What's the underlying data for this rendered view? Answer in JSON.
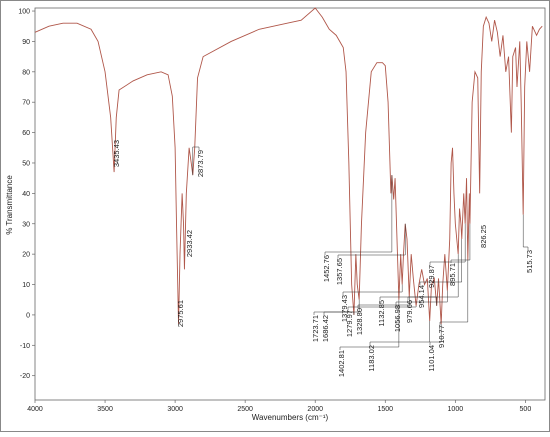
{
  "chart_data": {
    "type": "line",
    "x_label": "Wavenumbers (cm⁻¹)",
    "y_label": "% Transmittance",
    "xlim": [
      4000,
      360
    ],
    "ylim": [
      -28,
      101
    ],
    "xticks": [
      4000,
      3500,
      3000,
      2500,
      2000,
      1500,
      1000,
      500
    ],
    "yticks": [
      100,
      90,
      80,
      70,
      60,
      50,
      40,
      30,
      20,
      10,
      0,
      -10,
      -20
    ],
    "grid": false,
    "series": [
      {
        "color": "#b0574a",
        "x": [
          4000,
          3900,
          3800,
          3700,
          3600,
          3550,
          3500,
          3460,
          3435.43,
          3420,
          3400,
          3300,
          3200,
          3100,
          3050,
          3020,
          3000,
          2990,
          2975.61,
          2965,
          2950,
          2940,
          2933.42,
          2920,
          2900,
          2885,
          2873.79,
          2860,
          2840,
          2800,
          2600,
          2400,
          2200,
          2100,
          2000,
          1950,
          1900,
          1850,
          1800,
          1780,
          1760,
          1740,
          1723.71,
          1710,
          1700,
          1686.42,
          1670,
          1640,
          1600,
          1560,
          1520,
          1500,
          1480,
          1460,
          1452.76,
          1440,
          1430,
          1402.81,
          1390,
          1379.43,
          1370,
          1357.65,
          1345,
          1328.8,
          1315,
          1300,
          1279.97,
          1260,
          1240,
          1220,
          1200,
          1183.02,
          1170,
          1150,
          1132.85,
          1120,
          1101.04,
          1090,
          1075,
          1056.98,
          1040,
          1030,
          1020,
          1010,
          1000,
          979.66,
          970,
          960,
          954.14,
          940,
          929.87,
          920,
          910.77,
          900,
          895.71,
          880,
          860,
          840,
          826.25,
          815,
          800,
          780,
          760,
          740,
          720,
          700,
          680,
          660,
          640,
          620,
          600,
          590,
          570,
          560,
          540,
          530,
          515.73,
          505,
          490,
          470,
          450,
          420,
          400,
          380
        ],
        "values": [
          93,
          95,
          96,
          96,
          94,
          90,
          80,
          65,
          47,
          65,
          74,
          77,
          79,
          80,
          79,
          72,
          55,
          30,
          -3,
          20,
          40,
          30,
          15,
          40,
          55,
          50,
          46,
          55,
          78,
          85,
          90,
          94,
          96,
          97,
          101,
          98,
          94,
          92,
          88,
          80,
          50,
          10,
          0,
          20,
          10,
          5,
          30,
          60,
          80,
          83,
          83,
          82,
          70,
          40,
          46,
          38,
          45,
          5,
          20,
          10,
          20,
          30,
          25,
          6,
          20,
          12,
          3,
          10,
          15,
          10,
          12,
          -2,
          10,
          12,
          3,
          12,
          -3,
          10,
          20,
          8,
          25,
          50,
          55,
          40,
          30,
          20,
          35,
          30,
          25,
          40,
          30,
          45,
          18,
          40,
          30,
          70,
          80,
          78,
          40,
          80,
          95,
          98,
          96,
          90,
          97,
          93,
          85,
          92,
          80,
          85,
          60,
          85,
          88,
          75,
          90,
          70,
          33,
          75,
          90,
          80,
          95,
          92,
          94,
          95
        ]
      }
    ],
    "annotations": [
      {
        "label": "3435.43",
        "x": 3435.43,
        "y": 47
      },
      {
        "label": "2975.61",
        "x": 2975.61,
        "y": -3
      },
      {
        "label": "2933.42",
        "x": 2933.42,
        "y": 15
      },
      {
        "label": "2873.79",
        "x": 2873.79,
        "y": 46
      },
      {
        "label": "1452.76",
        "x": 1452.76,
        "y": 46
      },
      {
        "label": "1357.65",
        "x": 1357.65,
        "y": 30
      },
      {
        "label": "1379.43",
        "x": 1379.43,
        "y": 10
      },
      {
        "label": "1723.71",
        "x": 1723.71,
        "y": 0
      },
      {
        "label": "1686.42",
        "x": 1686.42,
        "y": 5
      },
      {
        "label": "1279.97",
        "x": 1279.97,
        "y": 3
      },
      {
        "label": "1328.80",
        "x": 1328.8,
        "y": 6
      },
      {
        "label": "1402.81",
        "x": 1402.81,
        "y": 5
      },
      {
        "label": "1183.02",
        "x": 1183.02,
        "y": -2
      },
      {
        "label": "1132.85",
        "x": 1132.85,
        "y": 3
      },
      {
        "label": "1101.04",
        "x": 1101.04,
        "y": -3
      },
      {
        "label": "1056.98",
        "x": 1056.98,
        "y": 8
      },
      {
        "label": "979.66",
        "x": 979.66,
        "y": 20
      },
      {
        "label": "954.14",
        "x": 954.14,
        "y": 25
      },
      {
        "label": "929.87",
        "x": 929.87,
        "y": 30
      },
      {
        "label": "910.77",
        "x": 910.77,
        "y": 18
      },
      {
        "label": "895.71",
        "x": 895.71,
        "y": 30
      },
      {
        "label": "826.25",
        "x": 826.25,
        "y": 40
      },
      {
        "label": "515.73",
        "x": 515.73,
        "y": 33
      }
    ]
  }
}
